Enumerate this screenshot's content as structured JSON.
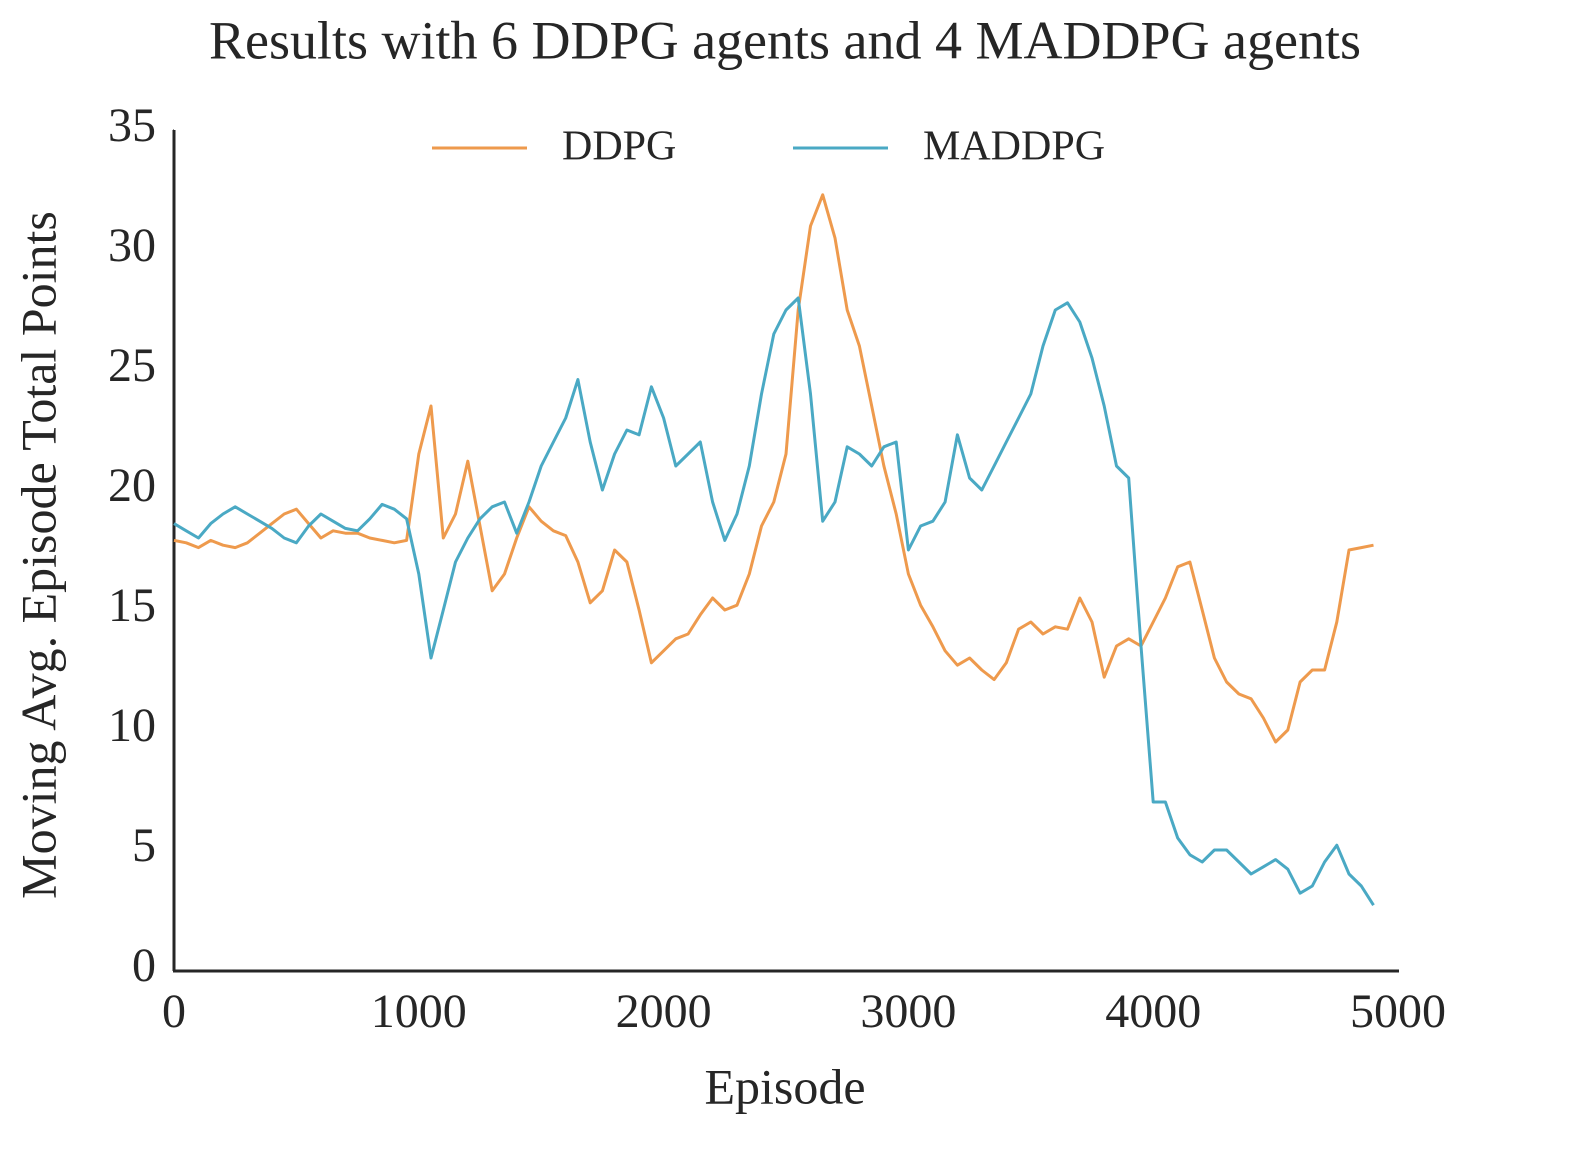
{
  "chart_data": {
    "type": "line",
    "title": "Results with 6 DDPG agents and 4 MADDPG agents",
    "x_label": "Episode",
    "y_label": "Moving Avg. Episode Total Points",
    "x": [
      0,
      50,
      100,
      150,
      200,
      250,
      300,
      350,
      400,
      450,
      500,
      550,
      600,
      650,
      700,
      750,
      800,
      850,
      900,
      950,
      1000,
      1050,
      1100,
      1150,
      1200,
      1250,
      1300,
      1350,
      1400,
      1450,
      1500,
      1550,
      1600,
      1650,
      1700,
      1750,
      1800,
      1850,
      1900,
      1950,
      2000,
      2050,
      2100,
      2150,
      2200,
      2250,
      2300,
      2350,
      2400,
      2450,
      2500,
      2550,
      2600,
      2650,
      2700,
      2750,
      2800,
      2850,
      2900,
      2950,
      3000,
      3050,
      3100,
      3150,
      3200,
      3250,
      3300,
      3350,
      3400,
      3450,
      3500,
      3550,
      3600,
      3650,
      3700,
      3750,
      3800,
      3850,
      3900,
      3950,
      4000,
      4050,
      4100,
      4150,
      4200,
      4250,
      4300,
      4350,
      4400,
      4450,
      4500,
      4550,
      4600,
      4650,
      4700,
      4750,
      4800,
      4850,
      4900
    ],
    "series": [
      {
        "name": "DDPG",
        "color": "#ee9a4d",
        "values": [
          17.9,
          17.8,
          17.6,
          17.9,
          17.7,
          17.6,
          17.8,
          18.2,
          18.6,
          19.0,
          19.2,
          18.6,
          18.0,
          18.3,
          18.2,
          18.2,
          18.0,
          17.9,
          17.8,
          17.9,
          21.5,
          23.5,
          18.0,
          19.0,
          21.2,
          18.5,
          15.8,
          16.5,
          18.0,
          19.3,
          18.7,
          18.3,
          18.1,
          17.0,
          15.3,
          15.8,
          17.5,
          17.0,
          15.0,
          12.8,
          13.3,
          13.8,
          14.0,
          14.8,
          15.5,
          15.0,
          15.2,
          16.5,
          18.5,
          19.5,
          21.5,
          27.5,
          31.0,
          32.3,
          30.5,
          27.5,
          26.0,
          23.5,
          21.0,
          19.0,
          16.5,
          15.2,
          14.3,
          13.3,
          12.7,
          13.0,
          12.5,
          12.1,
          12.8,
          14.2,
          14.5,
          14.0,
          14.3,
          14.2,
          15.5,
          14.5,
          12.2,
          13.5,
          13.8,
          13.5,
          14.5,
          15.5,
          16.8,
          17.0,
          15.0,
          13.0,
          12.0,
          11.5,
          11.3,
          10.5,
          9.5,
          10.0,
          12.0,
          12.5,
          12.5,
          14.5,
          17.5,
          17.6,
          17.7
        ]
      },
      {
        "name": "MADDPG",
        "color": "#4aa9c4",
        "values": [
          18.6,
          18.3,
          18.0,
          18.6,
          19.0,
          19.3,
          19.0,
          18.7,
          18.4,
          18.0,
          17.8,
          18.5,
          19.0,
          18.7,
          18.4,
          18.3,
          18.8,
          19.4,
          19.2,
          18.8,
          16.5,
          13.0,
          15.0,
          17.0,
          18.0,
          18.8,
          19.3,
          19.5,
          18.2,
          19.5,
          21.0,
          22.0,
          23.0,
          24.6,
          22.0,
          20.0,
          21.5,
          22.5,
          22.3,
          24.3,
          23.0,
          21.0,
          21.5,
          22.0,
          19.5,
          17.9,
          19.0,
          21.0,
          24.0,
          26.5,
          27.5,
          28.0,
          24.0,
          18.7,
          19.5,
          21.8,
          21.5,
          21.0,
          21.8,
          22.0,
          17.5,
          18.5,
          18.7,
          19.5,
          22.3,
          20.5,
          20.0,
          21.0,
          22.0,
          23.0,
          24.0,
          26.0,
          27.5,
          27.8,
          27.0,
          25.5,
          23.5,
          21.0,
          20.5,
          13.5,
          7.0,
          7.0,
          5.5,
          4.8,
          4.5,
          5.0,
          5.0,
          4.5,
          4.0,
          4.3,
          4.6,
          4.2,
          3.2,
          3.5,
          4.5,
          5.2,
          4.0,
          3.5,
          2.7
        ]
      }
    ],
    "xlim": [
      0,
      5000
    ],
    "xticks": [
      0,
      1000,
      2000,
      3000,
      4000,
      5000
    ],
    "ylim": [
      0,
      35
    ],
    "yticks": [
      0,
      5,
      10,
      15,
      20,
      25,
      30,
      35
    ],
    "grid": false,
    "legend": "upper center"
  }
}
